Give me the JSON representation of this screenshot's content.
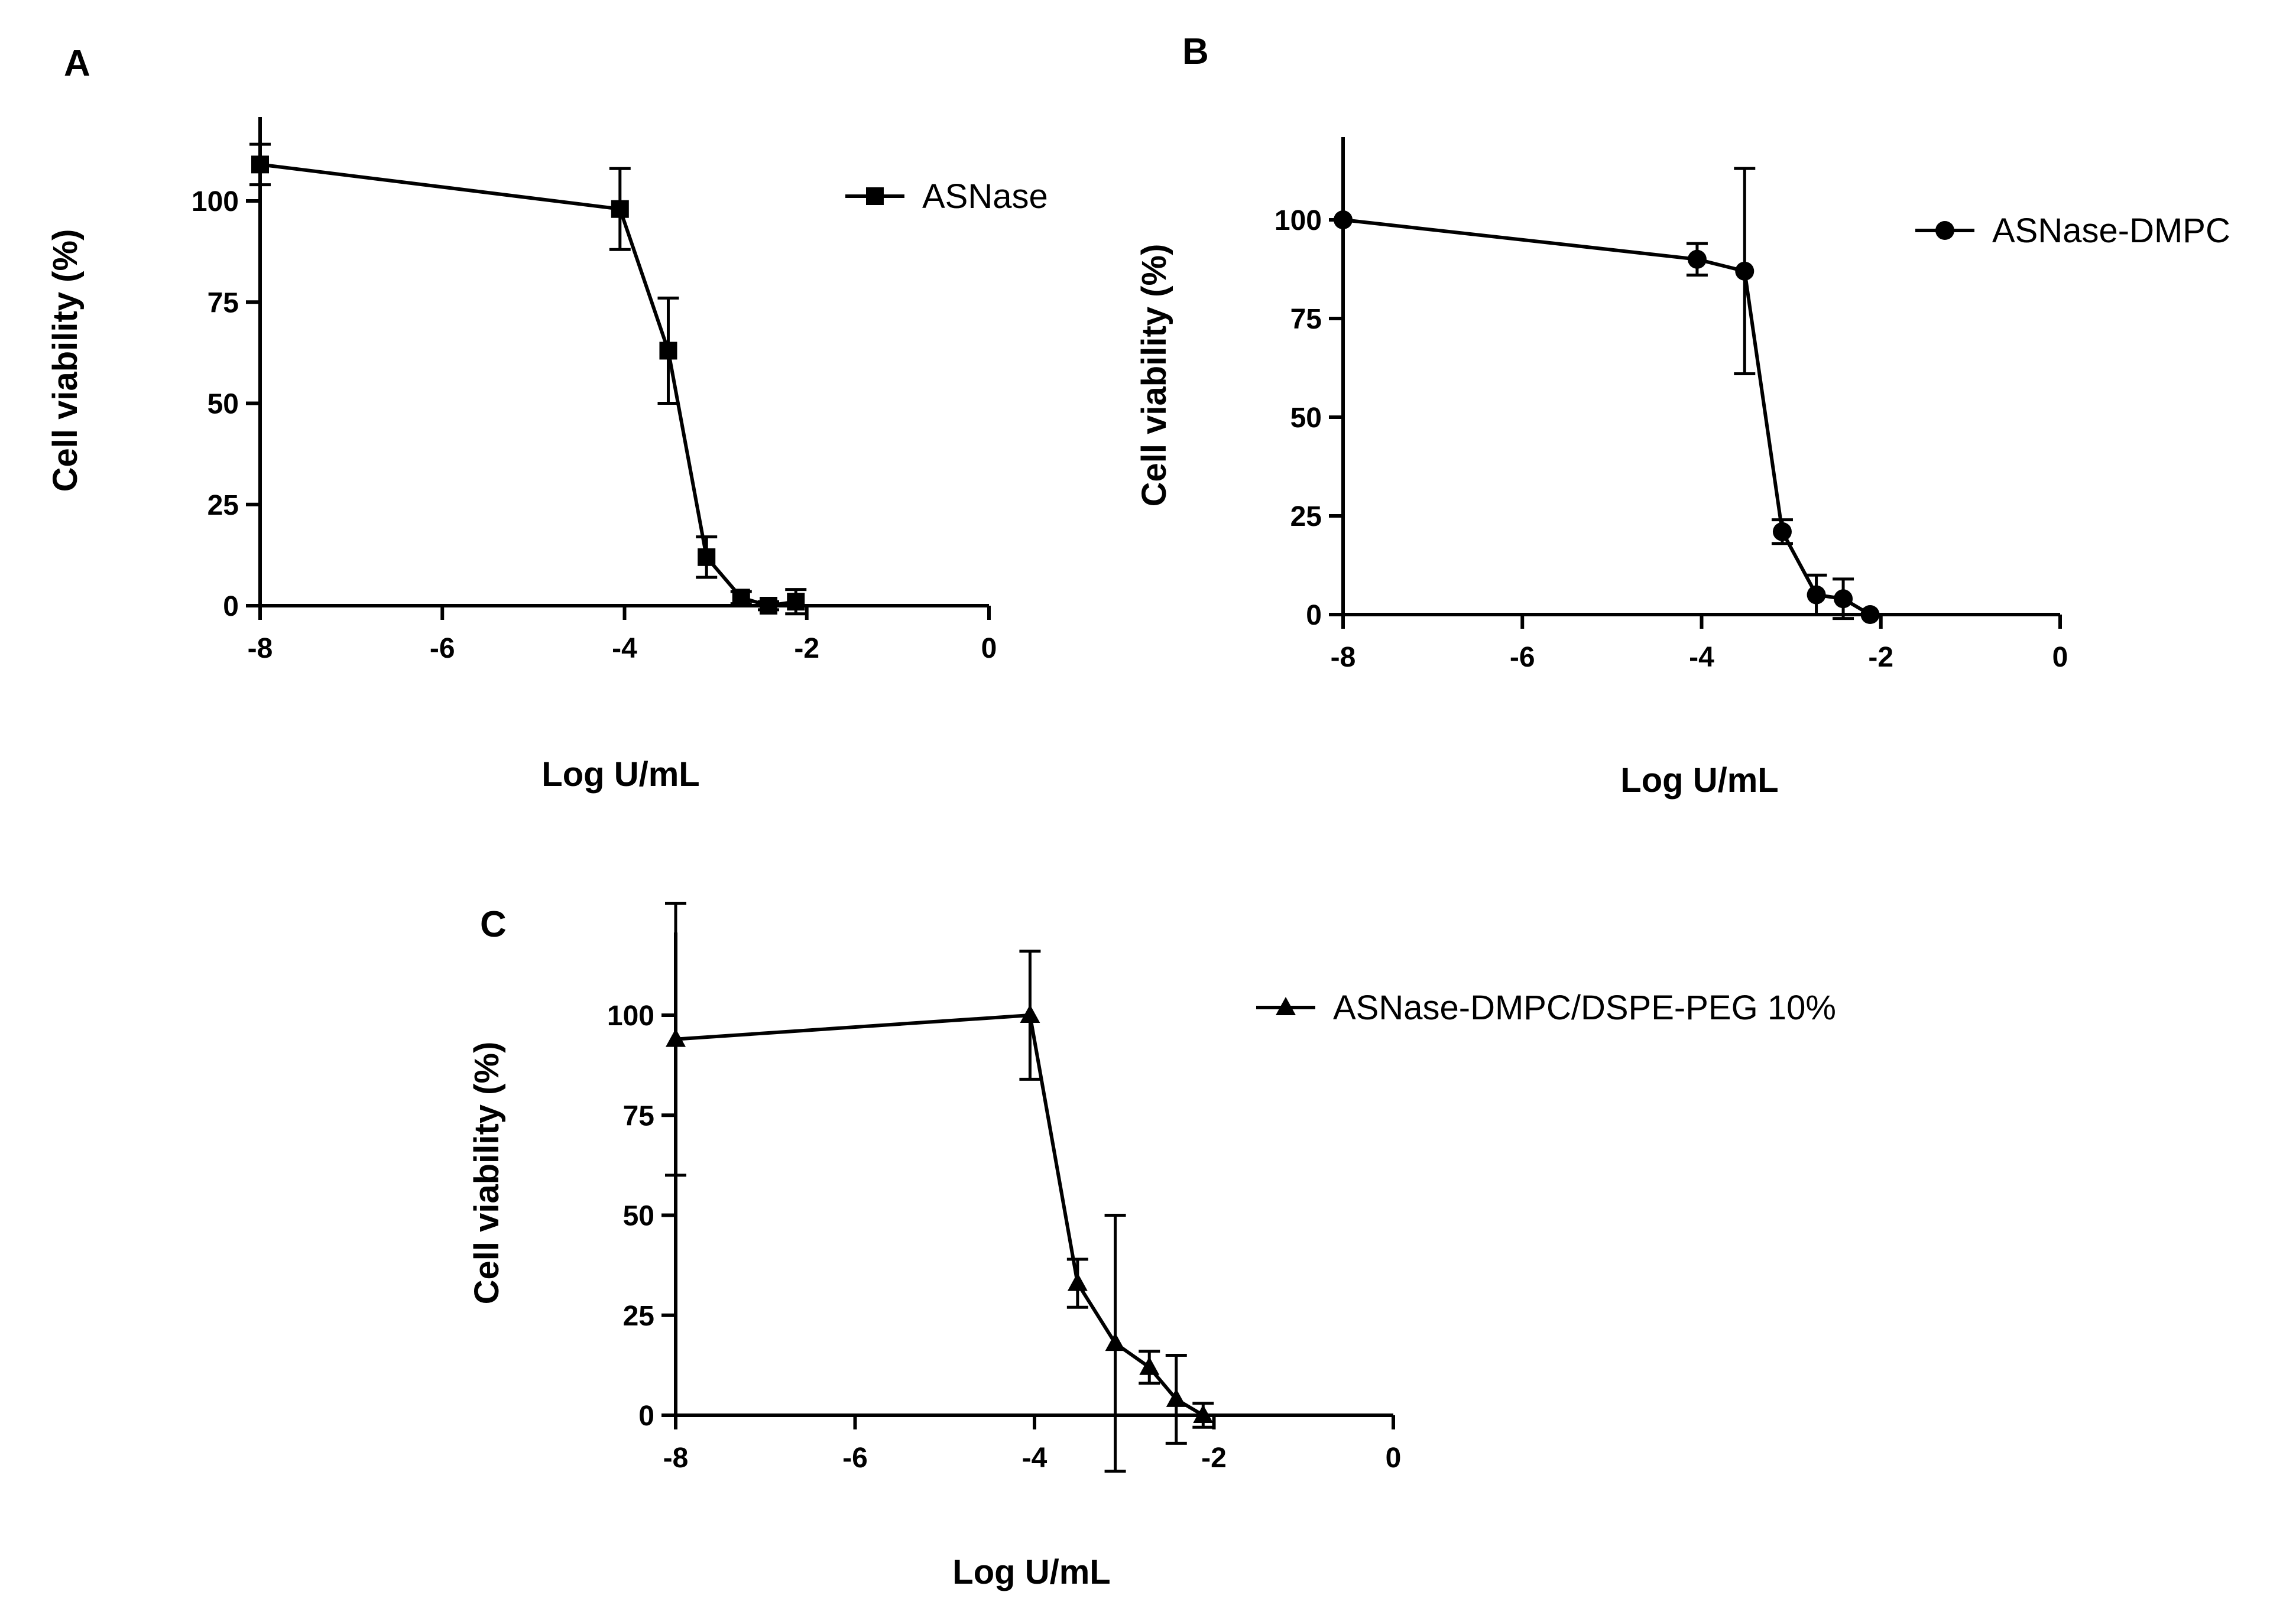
{
  "chart_data": [
    {
      "panel": "A",
      "type": "line",
      "xlabel": "Log U/mL",
      "ylabel": "Cell viability (%)",
      "xlim": [
        -8,
        0
      ],
      "ylim": [
        0,
        120
      ],
      "xticks": [
        "-8",
        "-6",
        "-4",
        "-2",
        "0"
      ],
      "yticks": [
        "0",
        "25",
        "50",
        "75",
        "100"
      ],
      "legend_position": "top-right",
      "series": [
        {
          "name": "ASNase",
          "marker": "square",
          "x": [
            -8,
            -4.05,
            -3.52,
            -3.1,
            -2.72,
            -2.42,
            -2.12
          ],
          "y": [
            109,
            98,
            63,
            12,
            2,
            0,
            1
          ],
          "error": [
            5,
            10,
            13,
            5,
            1.5,
            1,
            3
          ]
        }
      ]
    },
    {
      "panel": "B",
      "type": "line",
      "xlabel": "Log U/mL",
      "ylabel": "Cell viability (%)",
      "xlim": [
        -8,
        0
      ],
      "ylim": [
        0,
        120
      ],
      "xticks": [
        "-8",
        "-6",
        "-4",
        "-2",
        "0"
      ],
      "yticks": [
        "0",
        "25",
        "50",
        "75",
        "100"
      ],
      "legend_position": "top-right",
      "series": [
        {
          "name": "ASNase-DMPC",
          "marker": "circle",
          "x": [
            -8,
            -4.05,
            -3.52,
            -3.1,
            -2.72,
            -2.42,
            -2.12
          ],
          "y": [
            100,
            90,
            87,
            21,
            5,
            4,
            0
          ],
          "error": [
            0,
            4,
            26,
            3,
            5,
            5,
            0
          ]
        }
      ]
    },
    {
      "panel": "C",
      "type": "line",
      "xlabel": "Log U/mL",
      "ylabel": "Cell viability (%)",
      "xlim": [
        -8,
        0
      ],
      "ylim": [
        0,
        120
      ],
      "xticks": [
        "-8",
        "-6",
        "-4",
        "-2",
        "0"
      ],
      "yticks": [
        "0",
        "25",
        "50",
        "75",
        "100"
      ],
      "legend_position": "top-right",
      "series": [
        {
          "name": "ASNase-DMPC/DSPE-PEG 10%",
          "marker": "triangle",
          "x": [
            -8,
            -4.05,
            -3.52,
            -3.1,
            -2.72,
            -2.42,
            -2.12
          ],
          "y": [
            94,
            100,
            33,
            18,
            12,
            4,
            0
          ],
          "error": [
            34,
            16,
            6,
            32,
            4,
            11,
            3
          ]
        }
      ]
    }
  ]
}
